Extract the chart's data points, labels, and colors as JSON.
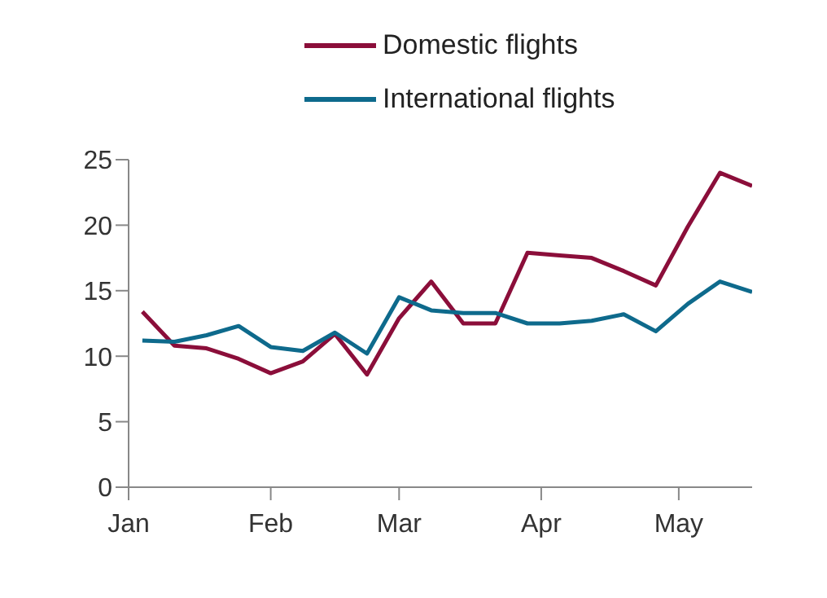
{
  "chart_data": {
    "type": "line",
    "x": [
      "--01-04",
      "--01-11",
      "--01-18",
      "--01-25",
      "--02-01",
      "--02-08",
      "--02-15",
      "--02-22",
      "--03-01",
      "--03-08",
      "--03-15",
      "--03-22",
      "--03-29",
      "--04-05",
      "--04-12",
      "--04-19",
      "--04-26",
      "--05-03",
      "--05-10",
      "--05-17"
    ],
    "series": [
      {
        "name": "Domestic flights",
        "color": "#8b0e3a",
        "values": [
          13.4,
          10.8,
          10.6,
          9.8,
          8.7,
          9.6,
          11.7,
          8.6,
          12.9,
          15.7,
          12.5,
          12.5,
          17.9,
          17.7,
          17.5,
          16.5,
          15.4,
          19.9,
          24.0,
          23.0
        ]
      },
      {
        "name": "International flights",
        "color": "#0e6a8c",
        "values": [
          11.2,
          11.1,
          11.6,
          12.3,
          10.7,
          10.4,
          11.8,
          10.2,
          14.5,
          13.5,
          13.3,
          13.3,
          12.5,
          12.5,
          12.7,
          13.2,
          11.9,
          14.0,
          15.7,
          14.9
        ]
      }
    ],
    "xlim": [
      "--01-01",
      "--05-17"
    ],
    "xticks": [
      {
        "value": "--01-01",
        "label": "Jan"
      },
      {
        "value": "--02-01",
        "label": "Feb"
      },
      {
        "value": "--03-01",
        "label": "Mar"
      },
      {
        "value": "--04-01",
        "label": "Apr"
      },
      {
        "value": "--05-01",
        "label": "May"
      }
    ],
    "ylim": [
      0,
      25
    ],
    "yticks": [
      0,
      5,
      10,
      15,
      20,
      25
    ],
    "grid": false,
    "legend": "top right"
  }
}
